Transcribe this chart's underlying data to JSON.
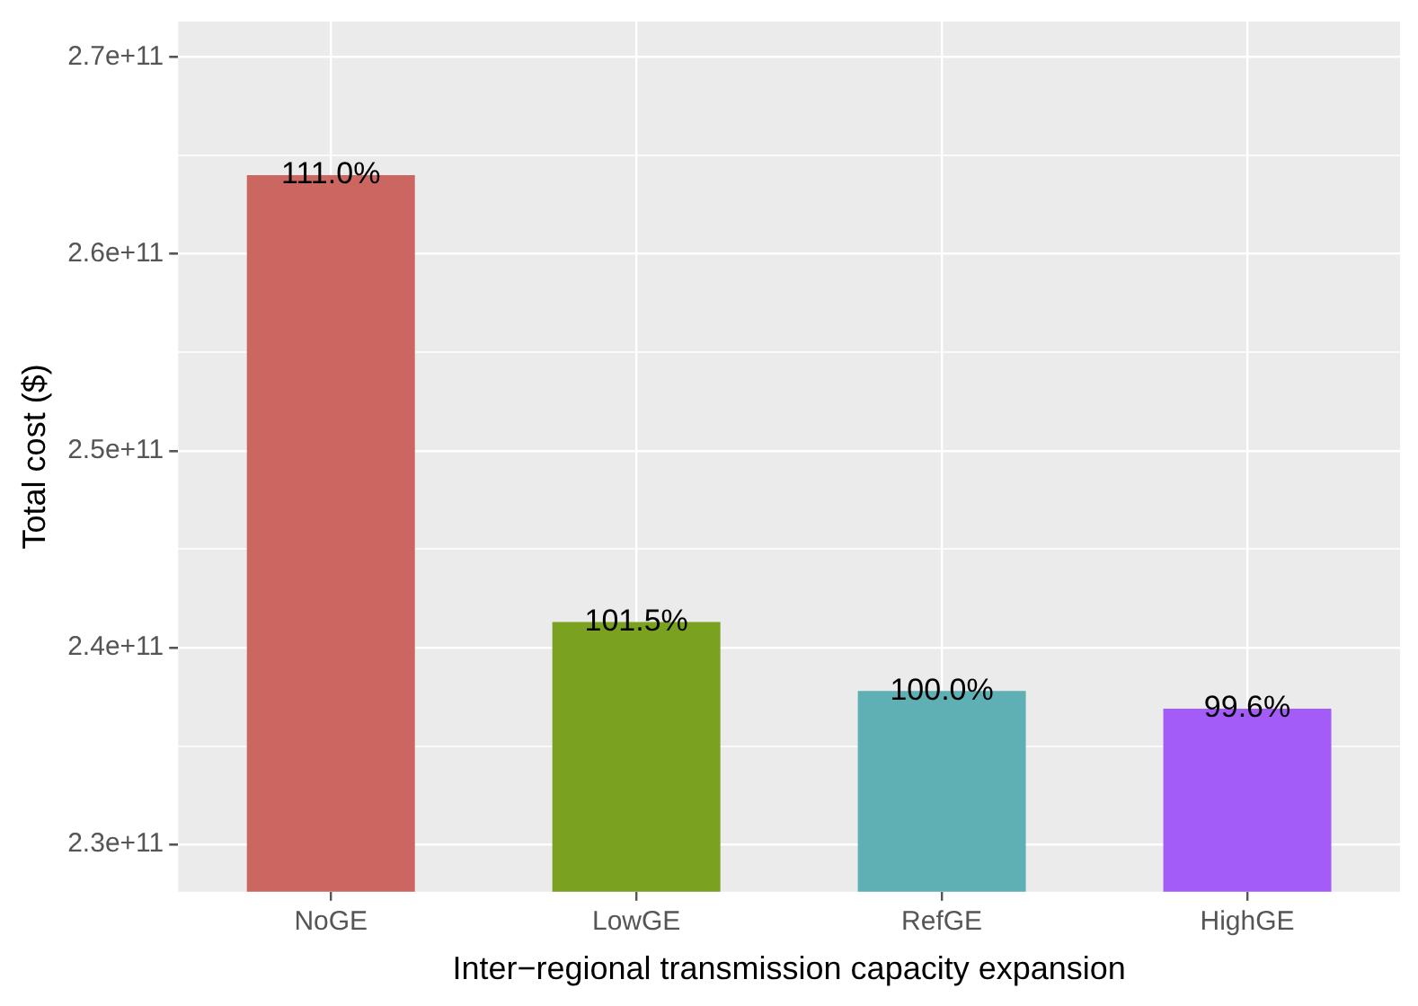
{
  "chart_data": {
    "type": "bar",
    "xlabel": "Inter−regional transmission capacity expansion",
    "ylabel": "Total cost ($)",
    "categories": [
      "NoGE",
      "LowGE",
      "RefGE",
      "HighGE"
    ],
    "values": [
      264000000000.0,
      241300000000.0,
      237800000000.0,
      236900000000.0
    ],
    "colors": [
      "#cc6660",
      "#7aa11f",
      "#5fb0b5",
      "#a35cf7"
    ],
    "annotations": [
      {
        "text": "111.0%",
        "x": "NoGE",
        "y": 264000000000.0
      },
      {
        "text": "101.5%",
        "x": "LowGE",
        "y": 241300000000.0
      },
      {
        "text": "100.0%",
        "x": "RefGE",
        "y": 237800000000.0
      },
      {
        "text": "99.6%",
        "x": "HighGE",
        "y": 236900000000.0
      }
    ],
    "ylim": [
      227600000000.0,
      271800000000.0
    ],
    "yticks": [
      {
        "value": 230000000000.0,
        "label": "2.3e+11"
      },
      {
        "value": 235000000000.0,
        "label": null
      },
      {
        "value": 240000000000.0,
        "label": "2.4e+11"
      },
      {
        "value": 245000000000.0,
        "label": null
      },
      {
        "value": 250000000000.0,
        "label": "2.5e+11"
      },
      {
        "value": 255000000000.0,
        "label": null
      },
      {
        "value": 260000000000.0,
        "label": "2.6e+11"
      },
      {
        "value": 265000000000.0,
        "label": null
      },
      {
        "value": 270000000000.0,
        "label": "2.7e+11"
      }
    ],
    "grid": true,
    "legend": false
  }
}
